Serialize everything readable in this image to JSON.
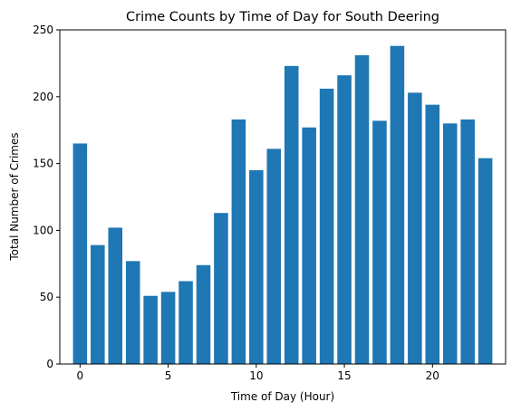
{
  "chart_data": {
    "type": "bar",
    "title": "Crime Counts by Time of Day for South Deering",
    "xlabel": "Time of Day (Hour)",
    "ylabel": "Total Number of Crimes",
    "x": [
      0,
      1,
      2,
      3,
      4,
      5,
      6,
      7,
      8,
      9,
      10,
      11,
      12,
      13,
      14,
      15,
      16,
      17,
      18,
      19,
      20,
      21,
      22,
      23
    ],
    "values": [
      165,
      89,
      102,
      77,
      51,
      54,
      62,
      74,
      113,
      183,
      145,
      161,
      223,
      177,
      206,
      216,
      231,
      182,
      238,
      203,
      194,
      180,
      183,
      154
    ],
    "xlim": [
      -1.15,
      24.15
    ],
    "ylim": [
      0,
      250
    ],
    "xticks": [
      0,
      5,
      10,
      15,
      20
    ],
    "yticks": [
      0,
      50,
      100,
      150,
      200,
      250
    ],
    "bar_color": "#1f77b4",
    "grid": false,
    "legend": "none"
  }
}
